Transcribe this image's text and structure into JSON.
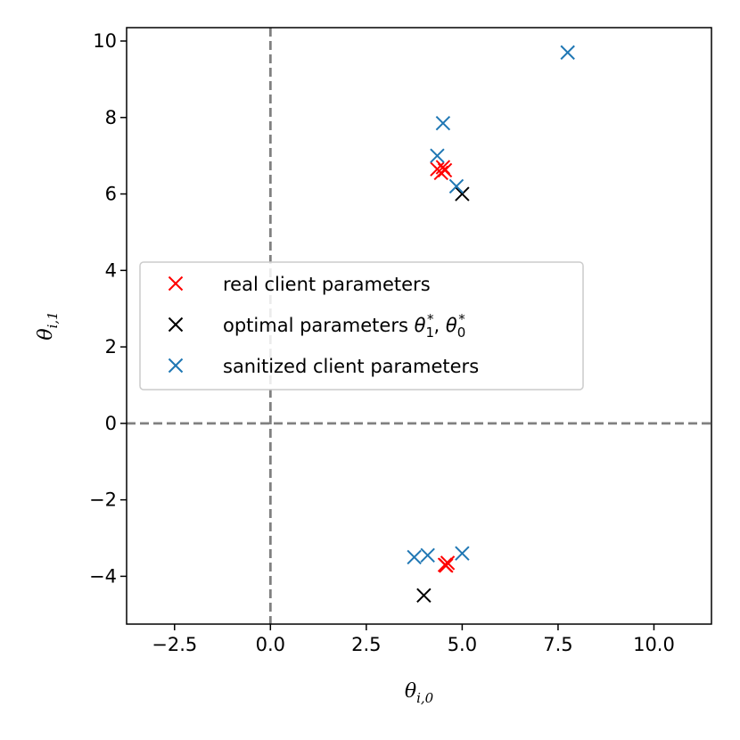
{
  "chart_data": {
    "type": "scatter",
    "xlabel": "θi,0",
    "ylabel": "θi,1",
    "xlim": [
      -3.75,
      11.5
    ],
    "ylim": [
      -5.25,
      10.35
    ],
    "xticks": [
      -2.5,
      0.0,
      2.5,
      5.0,
      7.5,
      10.0
    ],
    "xtick_labels": [
      "−2.5",
      "0.0",
      "2.5",
      "5.0",
      "7.5",
      "10.0"
    ],
    "yticks": [
      -4,
      -2,
      0,
      2,
      4,
      6,
      8,
      10
    ],
    "ytick_labels": [
      "−4",
      "−2",
      "0",
      "2",
      "4",
      "6",
      "8",
      "10"
    ],
    "reference_lines": {
      "x": 0,
      "y": 0,
      "style": "dashed",
      "color": "#808080"
    },
    "grid": false,
    "legend_position": "center-left",
    "marker": "x",
    "series": [
      {
        "name": "real client parameters",
        "color": "#ff0000",
        "points": [
          [
            4.35,
            6.65
          ],
          [
            4.45,
            6.55
          ],
          [
            4.55,
            6.62
          ],
          [
            4.5,
            6.7
          ],
          [
            4.55,
            -3.7
          ],
          [
            4.62,
            -3.65
          ],
          [
            4.58,
            -3.72
          ]
        ]
      },
      {
        "name": "optimal parameters θ1*, θ0*",
        "color": "#000000",
        "points": [
          [
            5.0,
            6.0
          ],
          [
            4.0,
            -4.5
          ]
        ]
      },
      {
        "name": "sanitized client parameters",
        "color": "#1f77b4",
        "points": [
          [
            7.75,
            9.7
          ],
          [
            4.5,
            7.85
          ],
          [
            4.35,
            7.0
          ],
          [
            4.85,
            6.2
          ],
          [
            3.75,
            -3.5
          ],
          [
            4.1,
            -3.45
          ],
          [
            5.0,
            -3.4
          ]
        ]
      }
    ]
  }
}
